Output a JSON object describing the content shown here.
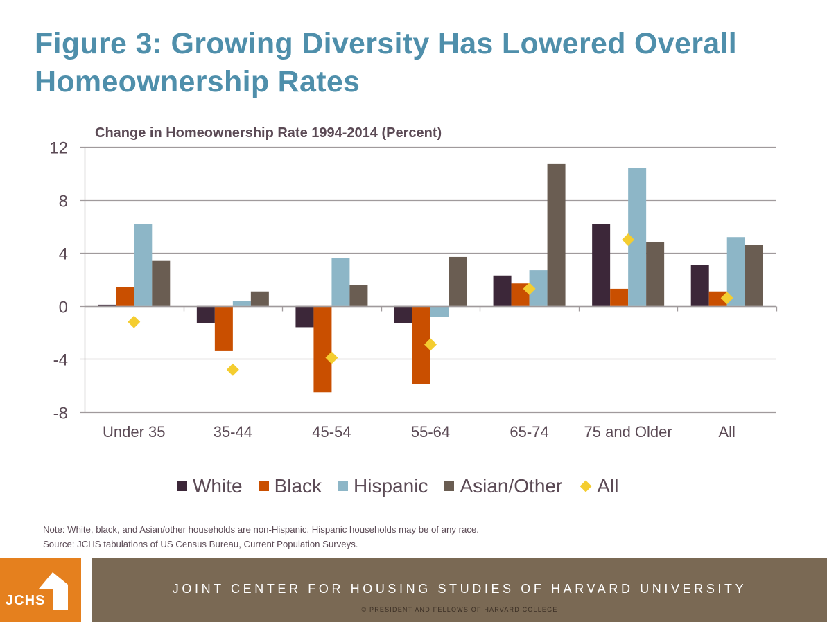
{
  "title": "Figure 3: Growing Diversity Has Lowered Overall Homeownership Rates",
  "chart_data": {
    "type": "bar",
    "title": "Change in Homeownership Rate 1994-2014 (Percent)",
    "xlabel": "",
    "ylabel": "",
    "ylim": [
      -8,
      12
    ],
    "yticks": [
      12,
      8,
      4,
      0,
      -4,
      -8
    ],
    "grid": true,
    "legend_position": "bottom",
    "categories": [
      "Under 35",
      "35-44",
      "45-54",
      "55-64",
      "65-74",
      "75 and Older",
      "All"
    ],
    "series": [
      {
        "name": "White",
        "kind": "bar",
        "color": "#3c2739",
        "values": [
          0.1,
          -1.3,
          -1.6,
          -1.3,
          2.3,
          6.2,
          3.1
        ]
      },
      {
        "name": "Black",
        "kind": "bar",
        "color": "#c94f00",
        "values": [
          1.4,
          -3.4,
          -6.5,
          -5.9,
          1.7,
          1.3,
          1.1
        ]
      },
      {
        "name": "Hispanic",
        "kind": "bar",
        "color": "#8db6c7",
        "values": [
          6.2,
          0.4,
          3.6,
          -0.8,
          2.7,
          10.4,
          5.2
        ]
      },
      {
        "name": "Asian/Other",
        "kind": "bar",
        "color": "#6a5d52",
        "values": [
          3.4,
          1.1,
          1.6,
          3.7,
          10.7,
          4.8,
          4.6
        ]
      },
      {
        "name": "All",
        "kind": "marker",
        "marker": "diamond",
        "color": "#f4cd30",
        "values": [
          -1.2,
          -4.8,
          -3.9,
          -2.9,
          1.3,
          5.0,
          0.6
        ]
      }
    ]
  },
  "notes": {
    "note": "Note: White, black, and Asian/other households are non-Hispanic. Hispanic households may be of any race.",
    "source": "Source: JCHS tabulations of US Census Bureau, Current Population Surveys."
  },
  "footer": {
    "logo_text": "JCHS",
    "organization": "JOINT CENTER FOR HOUSING STUDIES OF HARVARD UNIVERSITY",
    "copyright": "© PRESIDENT AND FELLOWS OF HARVARD COLLEGE"
  },
  "colors": {
    "title": "#4f8fab",
    "text": "#5b4a55",
    "grid": "#a09a9c",
    "footer_bar": "#7a6954",
    "logo_bg": "#e5801e"
  }
}
